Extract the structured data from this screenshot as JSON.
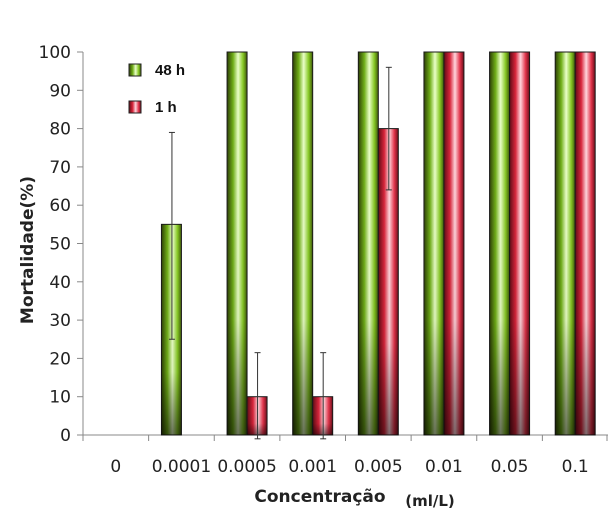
{
  "chart_data": {
    "type": "bar",
    "xlabel": "Concentração",
    "xunit": "(ml/L)",
    "ylabel": "Mortalidade(%)",
    "ylim": [
      0,
      100
    ],
    "yticks": [
      0,
      10,
      20,
      30,
      40,
      50,
      60,
      70,
      80,
      90,
      100
    ],
    "categories": [
      "0",
      "0.0001",
      "0.0005",
      "0.001",
      "0.005",
      "0.01",
      "0.05",
      "0.1"
    ],
    "grid": false,
    "legend_position": "top-left",
    "series": [
      {
        "name": "48 h",
        "color": "#7cc21a",
        "values": [
          0,
          55,
          100,
          100,
          100,
          100,
          100,
          100
        ],
        "error_low": [
          null,
          30,
          null,
          null,
          null,
          null,
          null,
          null
        ],
        "error_high": [
          null,
          24,
          null,
          null,
          null,
          null,
          null,
          null
        ]
      },
      {
        "name": "1 h",
        "color": "#e8283c",
        "values": [
          0,
          0,
          10,
          10,
          80,
          100,
          100,
          100
        ],
        "error_low": [
          null,
          null,
          11,
          11,
          16,
          null,
          null,
          null
        ],
        "error_high": [
          null,
          null,
          11.5,
          11.5,
          16,
          null,
          null,
          null
        ]
      }
    ]
  }
}
